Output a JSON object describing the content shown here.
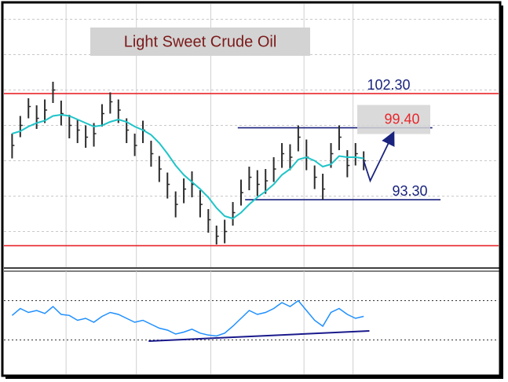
{
  "chart_data": {
    "type": "hlc",
    "title": "Light Sweet Crude Oil",
    "xlim": [
      -1,
      59.5
    ],
    "ylim": [
      87.57,
      109.7
    ],
    "ygrid": [
      90.6,
      93.6,
      96.6,
      99.6,
      102.6,
      105.6,
      108.6
    ],
    "xgrid": [
      6.6,
      15.2,
      24.3,
      35.7,
      41.7
    ],
    "bar_color": "#2b2b2b",
    "high": [
      98.9,
      100.4,
      101.9,
      101.3,
      101.8,
      103.3,
      101.7,
      100.5,
      100.1,
      99.6,
      99.8,
      101.4,
      102.4,
      101.8,
      100.2,
      98.9,
      100.0,
      98.3,
      97.0,
      95.6,
      94.0,
      95.1,
      95.7,
      94.1,
      92.5,
      91.1,
      91.6,
      93.1,
      95.0,
      96.1,
      95.8,
      95.9,
      96.9,
      98.1,
      98.0,
      99.6,
      98.4,
      96.2,
      95.5,
      98.1,
      99.6,
      97.5,
      98.1,
      97.4
    ],
    "low": [
      96.8,
      98.6,
      100.2,
      99.3,
      99.8,
      101.5,
      99.6,
      98.5,
      98.1,
      97.7,
      97.8,
      99.5,
      100.6,
      99.8,
      98.1,
      97.0,
      98.1,
      96.1,
      94.8,
      93.4,
      91.8,
      93.0,
      93.5,
      91.8,
      90.5,
      89.5,
      89.6,
      91.1,
      92.8,
      94.1,
      93.6,
      93.8,
      94.8,
      96.0,
      95.8,
      97.4,
      95.8,
      94.2,
      93.3,
      96.0,
      97.5,
      95.2,
      96.2,
      95.8
    ],
    "close": [
      97.9,
      99.6,
      101.2,
      100.2,
      100.9,
      102.6,
      100.6,
      99.6,
      99.2,
      98.6,
      98.9,
      100.6,
      101.6,
      100.9,
      99.2,
      97.9,
      99.2,
      97.2,
      95.9,
      94.6,
      92.9,
      94.2,
      94.6,
      92.9,
      91.6,
      90.2,
      90.6,
      92.2,
      93.9,
      95.2,
      94.6,
      94.9,
      95.9,
      97.2,
      96.9,
      98.6,
      96.9,
      95.2,
      94.2,
      97.2,
      98.6,
      96.2,
      97.2,
      96.6
    ],
    "ma": {
      "color": "#1fc4c8",
      "values": [
        98.9,
        99.1,
        99.5,
        99.8,
        100.0,
        100.4,
        100.5,
        100.4,
        100.1,
        99.8,
        99.5,
        99.6,
        99.9,
        100.1,
        99.9,
        99.5,
        99.2,
        98.8,
        98.1,
        97.2,
        96.2,
        95.4,
        94.8,
        94.2,
        93.5,
        92.6,
        91.9,
        91.7,
        92.2,
        92.9,
        93.5,
        94.0,
        94.6,
        95.4,
        95.9,
        96.7,
        96.9,
        96.6,
        96.1,
        96.3,
        97.0,
        96.9,
        96.9,
        96.8
      ]
    },
    "levels": [
      {
        "value": 102.3,
        "label": "102.30",
        "color": "#e8262b",
        "label_color": "#1a237e",
        "x": [
          -1,
          59.5
        ]
      },
      {
        "value": 99.4,
        "label": "99.40",
        "color": "#1a237e",
        "label_color": "#e8262b",
        "x": [
          27.6,
          51.4
        ],
        "label_box": true
      },
      {
        "value": 93.3,
        "label": "93.30",
        "color": "#1a237e",
        "label_color": "#1a237e",
        "x": [
          28.5,
          52.4
        ]
      },
      {
        "value": 89.4,
        "color": "#e8262b",
        "x": [
          -1,
          59.5
        ]
      }
    ],
    "forecast": {
      "color": "#1a237e",
      "x": [
        43,
        43.8,
        46.6
      ],
      "values": [
        96.6,
        94.9,
        98.9
      ]
    },
    "oscillator": {
      "color": "#1e8fff",
      "ylim": [
        0,
        100
      ],
      "levels": [
        70,
        30
      ],
      "values": [
        55,
        62,
        58,
        60,
        57,
        64,
        56,
        55,
        50,
        52,
        48,
        54,
        58,
        56,
        52,
        48,
        50,
        46,
        42,
        40,
        36,
        38,
        41,
        37,
        35,
        34,
        37,
        44,
        52,
        60,
        56,
        58,
        62,
        68,
        64,
        70,
        60,
        50,
        44,
        58,
        62,
        56,
        52,
        54
      ],
      "trendline": {
        "color": "#1a1a8c",
        "x": [
          16.7,
          43.7
        ],
        "values": [
          28.8,
          39.2
        ]
      }
    }
  }
}
